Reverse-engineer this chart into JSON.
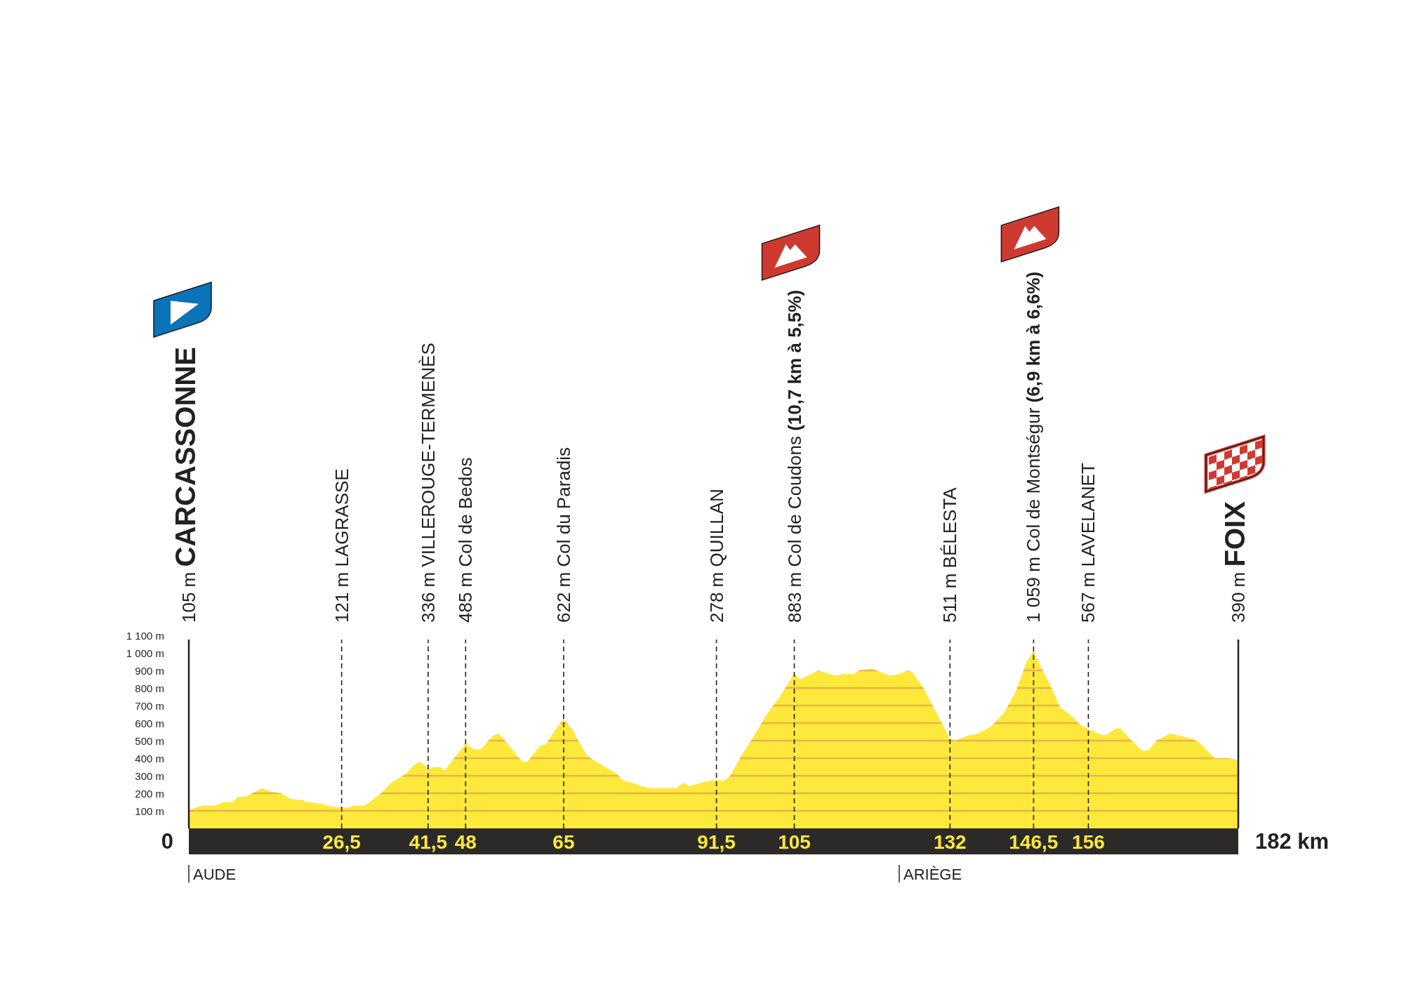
{
  "chart_data": {
    "type": "area",
    "x": [
      0,
      2.3,
      4.5,
      6,
      7.6,
      8.5,
      9.8,
      11,
      12.7,
      14.1,
      16,
      17.5,
      19.7,
      20.6,
      23.1,
      24,
      25.6,
      26.5,
      27.7,
      28.6,
      30.5,
      31.7,
      33.3,
      35.1,
      37.6,
      39,
      40,
      41,
      41.5,
      42.5,
      43.5,
      44.4,
      46,
      47.5,
      48,
      49.4,
      50.6,
      52.8,
      53.8,
      55.6,
      57.8,
      58.7,
      60.9,
      61.9,
      63.7,
      65,
      66.4,
      67.7,
      69.2,
      71.7,
      74.2,
      75.4,
      77,
      78.5,
      80,
      84.6,
      85.7,
      86.8,
      88.8,
      91.5,
      92.7,
      93.9,
      95.9,
      97.9,
      100.2,
      102.5,
      105,
      106,
      109.2,
      111.1,
      112.3,
      113.4,
      115.4,
      116.2,
      118.5,
      121.6,
      123.2,
      124.7,
      125.5,
      127.4,
      129.8,
      132,
      132.9,
      135.2,
      136.8,
      139.1,
      141.4,
      143.4,
      145.3,
      146.5,
      147.6,
      149.2,
      151.1,
      153.5,
      154.6,
      156,
      157.7,
      158.9,
      160.8,
      161.6,
      163.5,
      165.5,
      166.6,
      167.8,
      170.1,
      171.7,
      174,
      175.2,
      177.9,
      180.3,
      182
    ],
    "values": [
      105,
      130,
      130,
      150,
      150,
      180,
      180,
      200,
      230,
      210,
      200,
      170,
      160,
      150,
      140,
      130,
      120,
      121,
      120,
      130,
      130,
      160,
      200,
      260,
      310,
      360,
      380,
      360,
      336,
      350,
      350,
      330,
      400,
      460,
      485,
      450,
      450,
      530,
      540,
      470,
      380,
      380,
      470,
      480,
      570,
      622,
      570,
      490,
      410,
      360,
      310,
      270,
      260,
      240,
      230,
      230,
      260,
      240,
      260,
      278,
      270,
      300,
      420,
      520,
      650,
      750,
      883,
      850,
      900,
      880,
      870,
      880,
      880,
      900,
      910,
      870,
      880,
      900,
      890,
      800,
      650,
      511,
      500,
      530,
      540,
      580,
      660,
      780,
      950,
      1010,
      930,
      830,
      690,
      630,
      590,
      567,
      540,
      530,
      570,
      570,
      500,
      440,
      450,
      500,
      540,
      530,
      510,
      490,
      400,
      400,
      390
    ],
    "color": "#fde93b",
    "xlim": [
      0,
      182
    ],
    "xticks": [
      {
        "value": 26.5,
        "label": "26,5"
      },
      {
        "value": 41.5,
        "label": "41,5"
      },
      48,
      65,
      {
        "value": 91.5,
        "label": "91,5"
      },
      105,
      132,
      {
        "value": 146.5,
        "label": "146,5"
      },
      156
    ],
    "ylim": [
      0,
      1100
    ],
    "yticks": [
      {
        "value": 100,
        "label": "100 m"
      },
      {
        "value": 200,
        "label": "200 m"
      },
      {
        "value": 300,
        "label": "300 m"
      },
      {
        "value": 400,
        "label": "400 m"
      },
      {
        "value": 500,
        "label": "500 m"
      },
      {
        "value": 600,
        "label": "600 m"
      },
      {
        "value": 700,
        "label": "700 m"
      },
      {
        "value": 800,
        "label": "800 m"
      },
      {
        "value": 900,
        "label": "900 m"
      },
      {
        "value": 1000,
        "label": "1 000 m"
      },
      {
        "value": 1100,
        "label": "1 100 m"
      }
    ],
    "grid": "y",
    "ref_lines": [
      {
        "axis": "x",
        "value": 26.5,
        "label": "121 m LAGRASSE",
        "line_style": "dashed"
      },
      {
        "axis": "x",
        "value": 41.5,
        "label": "336 m VILLEROUGE-TERMENÈS",
        "line_style": "dashed"
      },
      {
        "axis": "x",
        "value": 48,
        "label": "485 m Col de Bedos",
        "line_style": "dashed"
      },
      {
        "axis": "x",
        "value": 65,
        "label": "622 m Col du Paradis",
        "line_style": "dashed"
      },
      {
        "axis": "x",
        "value": 91.5,
        "label": "278 m QUILLAN",
        "line_style": "dashed"
      },
      {
        "axis": "x",
        "value": 105,
        "label": "883 m Col de Coudons (10,7 km à 5,5%)",
        "line_style": "dashed"
      },
      {
        "axis": "x",
        "value": 132,
        "label": "511 m BÉLESTA",
        "line_style": "dashed"
      },
      {
        "axis": "x",
        "value": 146.5,
        "label": "1 059 m Col de Montségur (6,9 km à 6,6%)",
        "line_style": "dashed"
      },
      {
        "axis": "x",
        "value": 156,
        "label": "567 m LAVELANET",
        "line_style": "dashed"
      },
      {
        "axis": "x",
        "value": 182,
        "label": "390 m FOIX",
        "line_style": "solid"
      }
    ],
    "annotations": [
      "105 m CARCASSONNE",
      {
        "text": "0",
        "x": 0,
        "y": 0
      },
      {
        "text": "182 km",
        "x": 182,
        "y": 0
      },
      "AUDE",
      "ARIÈGE"
    ]
  }
}
